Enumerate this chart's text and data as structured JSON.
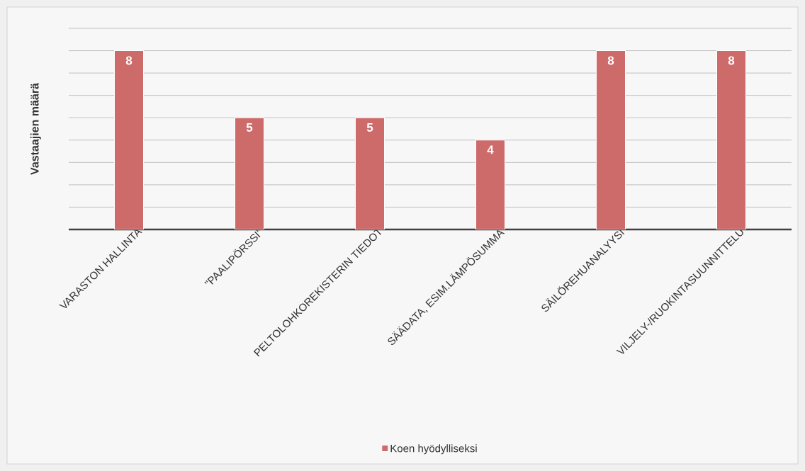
{
  "chart_data": {
    "type": "bar",
    "ylabel": "Vastaajien määrä",
    "categories": [
      "VARASTON HALLINTA",
      "\"PAALIPÖRSSI\"",
      "PELTOLOHKOREKISTERIN TIEDOT",
      "SÄÄDATA, ESIM.LÄMPÖSUMMA",
      "SÄILÖREHUANALYYSI",
      "VILJELY-/RUOKINTASUUNNITTELU"
    ],
    "series": [
      {
        "name": "Koen hyödylliseksi",
        "color": "#cd6b6b",
        "values": [
          8,
          5,
          5,
          4,
          8,
          8
        ]
      }
    ],
    "grid": "y",
    "legend": "bottom",
    "data_labels": true,
    "tick_labels": "x"
  }
}
